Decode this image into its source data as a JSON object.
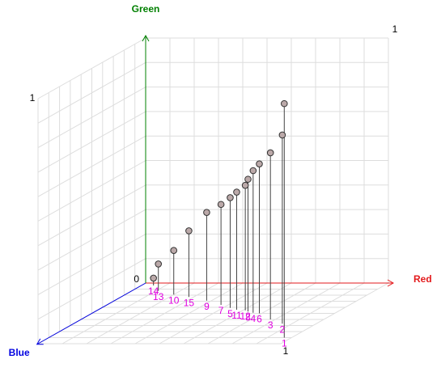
{
  "chart_data": {
    "type": "scatter3d",
    "axes": {
      "x": {
        "name": "Red",
        "color": "#e31a1c"
      },
      "y": {
        "name": "Green",
        "color": "#008000"
      },
      "z": {
        "name": "Blue",
        "color": "#0000e0"
      }
    },
    "xlim": [
      0,
      1
    ],
    "ylim": [
      0,
      1
    ],
    "zlim": [
      0,
      1
    ],
    "grid": true,
    "point_color": "#bba9a9",
    "label_color": "#e000e0",
    "points": {
      "labels": [
        "1",
        "2",
        "3",
        "4",
        "5",
        "6",
        "7",
        "8",
        "9",
        "10",
        "11",
        "12",
        "13",
        "14",
        "15"
      ],
      "x": [
        0.97,
        0.86,
        0.78,
        0.66,
        0.53,
        0.69,
        0.47,
        0.63,
        0.38,
        0.2,
        0.57,
        0.61,
        0.11,
        0.05,
        0.28
      ],
      "y": [
        0.955,
        0.77,
        0.68,
        0.58,
        0.45,
        0.61,
        0.41,
        0.54,
        0.36,
        0.18,
        0.48,
        0.51,
        0.11,
        0.03,
        0.27
      ],
      "z": [
        0.9,
        0.67,
        0.6,
        0.49,
        0.41,
        0.5,
        0.36,
        0.47,
        0.29,
        0.19,
        0.44,
        0.45,
        0.13,
        0.04,
        0.23
      ]
    }
  }
}
